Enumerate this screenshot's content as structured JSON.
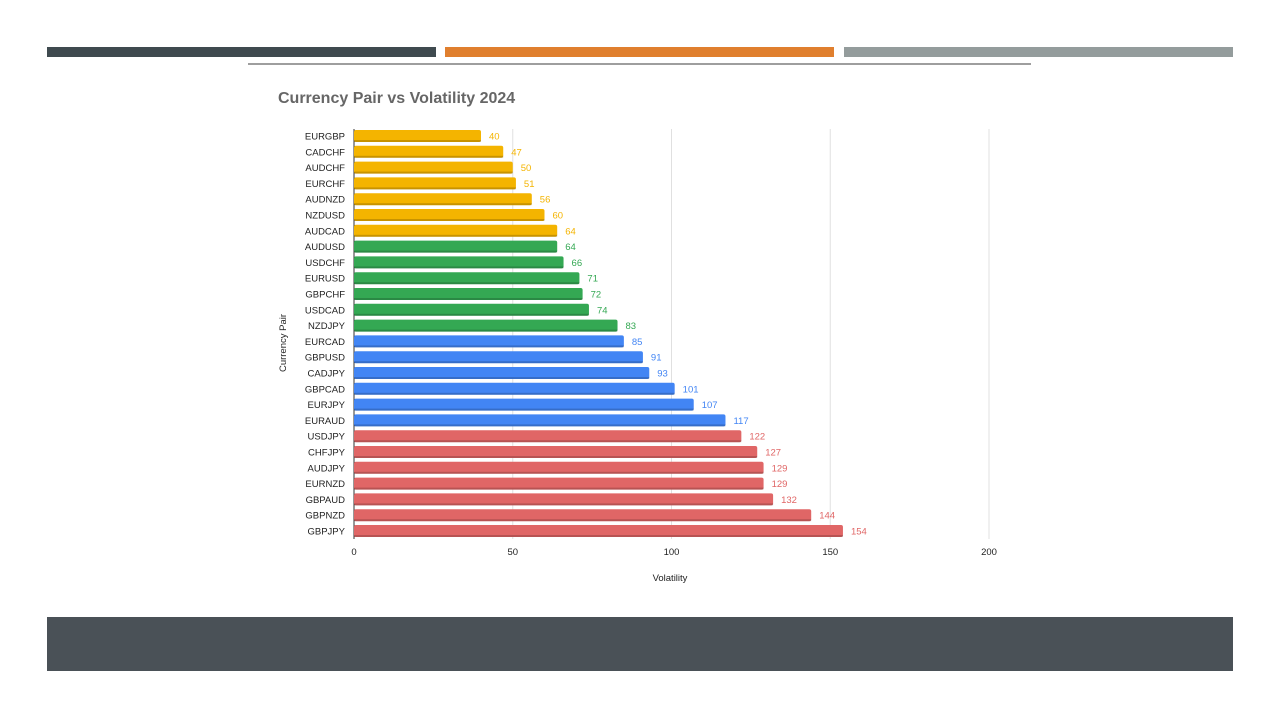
{
  "slide": {
    "accent_colors": [
      "#3f4a4f",
      "#e07f2e",
      "#949c9c"
    ],
    "footer_color": "#4a5157"
  },
  "chart_data": {
    "type": "bar",
    "orientation": "horizontal",
    "title": "Currency Pair vs Volatility 2024",
    "xlabel": "Volatility",
    "ylabel": "Currency Pair",
    "xlim": [
      0,
      200
    ],
    "xticks": [
      0,
      50,
      100,
      150,
      200
    ],
    "grid": true,
    "legend": "none",
    "categories": [
      "EURGBP",
      "CADCHF",
      "AUDCHF",
      "EURCHF",
      "AUDNZD",
      "NZDUSD",
      "AUDCAD",
      "AUDUSD",
      "USDCHF",
      "EURUSD",
      "GBPCHF",
      "USDCAD",
      "NZDJPY",
      "EURCAD",
      "GBPUSD",
      "CADJPY",
      "GBPCAD",
      "EURJPY",
      "EURAUD",
      "USDJPY",
      "CHFJPY",
      "AUDJPY",
      "EURNZD",
      "GBPAUD",
      "GBPNZD",
      "GBPJPY"
    ],
    "values": [
      40,
      47,
      50,
      51,
      56,
      60,
      64,
      64,
      66,
      71,
      72,
      74,
      83,
      85,
      91,
      93,
      101,
      107,
      117,
      122,
      127,
      129,
      129,
      132,
      144,
      154
    ],
    "colors": [
      "#f4b400",
      "#f4b400",
      "#f4b400",
      "#f4b400",
      "#f4b400",
      "#f4b400",
      "#f4b400",
      "#34a853",
      "#34a853",
      "#34a853",
      "#34a853",
      "#34a853",
      "#34a853",
      "#4285f4",
      "#4285f4",
      "#4285f4",
      "#4285f4",
      "#4285f4",
      "#4285f4",
      "#e06666",
      "#e06666",
      "#e06666",
      "#e06666",
      "#e06666",
      "#e06666",
      "#e06666"
    ]
  }
}
